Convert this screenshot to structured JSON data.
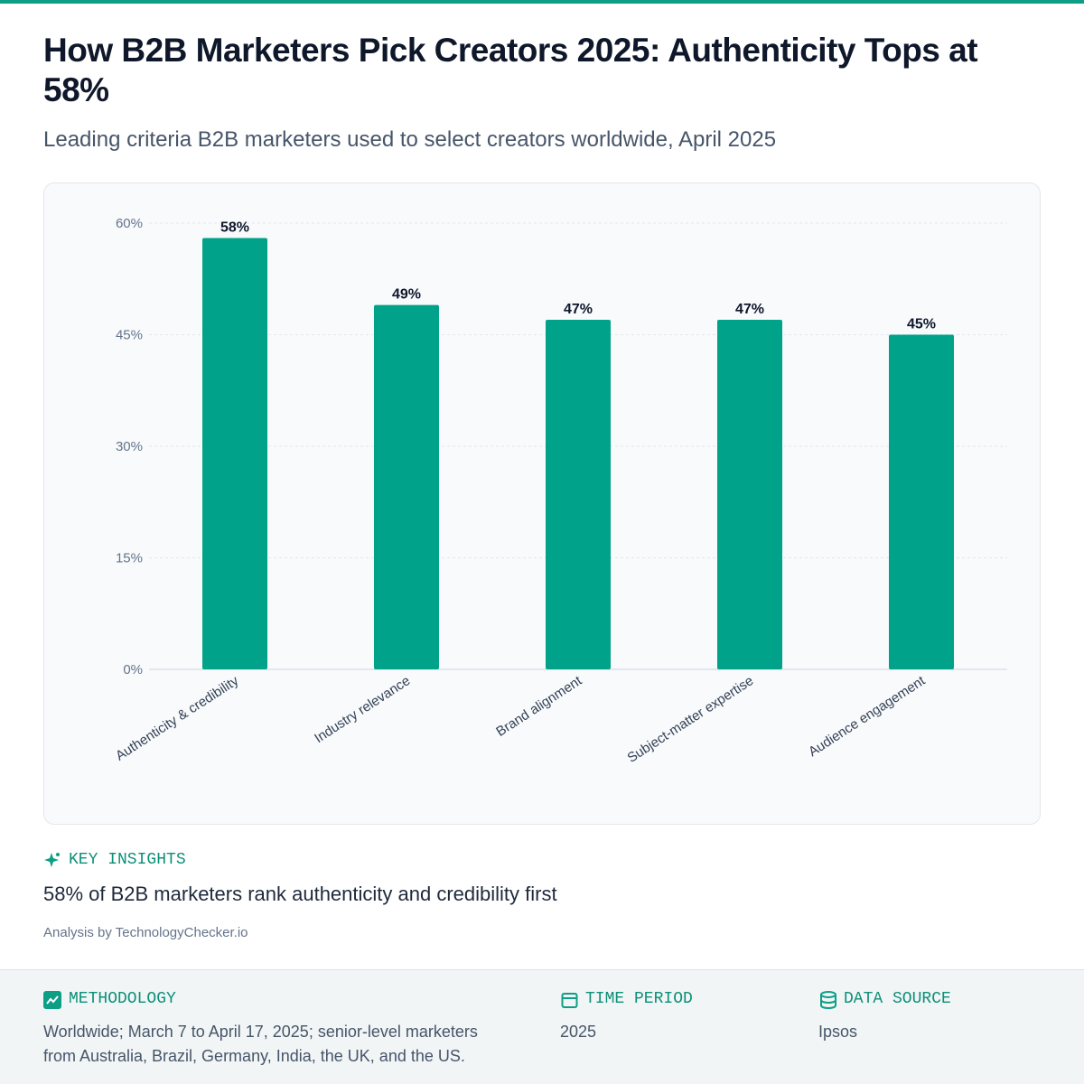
{
  "chart_data": {
    "type": "bar",
    "title": "How B2B Marketers Pick Creators 2025: Authenticity Tops at 58%",
    "subtitle": "Leading criteria B2B marketers used to select creators worldwide, April 2025",
    "categories": [
      "Authenticity & credibility",
      "Industry relevance",
      "Brand alignment",
      "Subject-matter expertise",
      "Audience engagement"
    ],
    "values": [
      58,
      49,
      47,
      47,
      45
    ],
    "value_labels": [
      "58%",
      "49%",
      "47%",
      "47%",
      "45%"
    ],
    "color": "#00a389",
    "ylim": [
      0,
      60
    ],
    "yticks": [
      {
        "value": 0,
        "label": "0%"
      },
      {
        "value": 15,
        "label": "15%"
      },
      {
        "value": 30,
        "label": "30%"
      },
      {
        "value": 45,
        "label": "45%"
      },
      {
        "value": 60,
        "label": "60%"
      }
    ],
    "grid": true
  },
  "insights": {
    "heading": "KEY INSIGHTS",
    "text": "58% of B2B marketers rank authenticity and credibility first",
    "credit": "Analysis by TechnologyChecker.io"
  },
  "footer": {
    "methodology": {
      "heading": "METHODOLOGY",
      "text": "Worldwide; March 7 to April 17, 2025; senior-level marketers from Australia, Brazil, Germany, India, the UK, and the US."
    },
    "time_period": {
      "heading": "TIME PERIOD",
      "text": "2025"
    },
    "data_source": {
      "heading": "DATA SOURCE",
      "text": "Ipsos"
    }
  }
}
